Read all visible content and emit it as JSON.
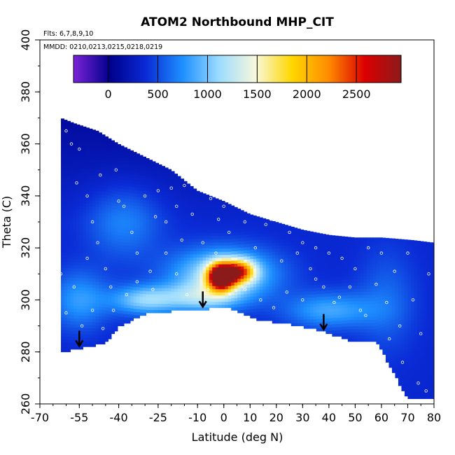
{
  "chart_data": {
    "type": "heatmap",
    "title": "ATOM2 Northbound MHP_CIT",
    "flights_note": "Flts: 6,7,8,9,10",
    "dates_note": "MMDD: 0210,0213,0215,0218,0219",
    "xlabel": "Latitude (deg N)",
    "ylabel": "Theta (C)",
    "xlim": [
      -70,
      80
    ],
    "ylim": [
      260,
      400
    ],
    "x_ticks": [
      -70,
      -55,
      -40,
      -25,
      -10,
      0,
      10,
      20,
      30,
      40,
      50,
      60,
      70,
      80
    ],
    "x_tick_labels": [
      "-70",
      "-55",
      "-40",
      "-25",
      "-10",
      "0",
      "10",
      "20",
      "30",
      "40",
      "50",
      "60",
      "70",
      "80"
    ],
    "y_ticks": [
      260,
      280,
      300,
      320,
      340,
      360,
      380,
      400
    ],
    "y_tick_labels": [
      "260",
      "280",
      "300",
      "320",
      "340",
      "360",
      "380",
      "400"
    ],
    "colorbar": {
      "range": [
        -350,
        2950
      ],
      "ticks": [
        0,
        500,
        1000,
        1500,
        2000,
        2500
      ],
      "tick_labels": [
        "0",
        "500",
        "1000",
        "1500",
        "2000",
        "2500"
      ],
      "colors": [
        "#7b22d9",
        "#00008b",
        "#0a2bd6",
        "#1e90ff",
        "#9cdcff",
        "#f8f8dc",
        "#ffd700",
        "#ff8c00",
        "#dc0000",
        "#8b1a1a"
      ]
    },
    "domain": {
      "top": [
        [
          -62,
          370
        ],
        [
          -57,
          368
        ],
        [
          -48,
          365
        ],
        [
          -40,
          360
        ],
        [
          -30,
          355
        ],
        [
          -20,
          350
        ],
        [
          -10,
          342
        ],
        [
          0,
          338
        ],
        [
          10,
          333
        ],
        [
          20,
          330
        ],
        [
          30,
          327
        ],
        [
          40,
          325
        ],
        [
          50,
          324
        ],
        [
          60,
          324
        ],
        [
          72,
          323
        ],
        [
          80,
          322
        ]
      ],
      "bottom": [
        [
          -62,
          280
        ],
        [
          -58,
          281
        ],
        [
          -45,
          284
        ],
        [
          -40,
          290
        ],
        [
          -30,
          295
        ],
        [
          -20,
          296
        ],
        [
          -5,
          297
        ],
        [
          0,
          298
        ],
        [
          5,
          296
        ],
        [
          12,
          293
        ],
        [
          25,
          291
        ],
        [
          35,
          289
        ],
        [
          45,
          286
        ],
        [
          50,
          284
        ],
        [
          58,
          285
        ],
        [
          70,
          262
        ],
        [
          80,
          262
        ]
      ]
    },
    "field_base": 350,
    "field_features": [
      {
        "name": "core-max",
        "x": -1,
        "y": 309,
        "value": 2600,
        "sx": 3.5,
        "sy": 3.5
      },
      {
        "name": "core-shoulder",
        "x": 6,
        "y": 311,
        "value": 1500,
        "sx": 4,
        "sy": 3
      },
      {
        "name": "high-theta-halo",
        "x": 0,
        "y": 310,
        "value": 900,
        "sx": 14,
        "sy": 7
      },
      {
        "name": "low-theta-band-south",
        "x": -30,
        "y": 300,
        "value": 700,
        "sx": 9,
        "sy": 4
      },
      {
        "name": "low-theta-band-mid",
        "x": -8,
        "y": 301,
        "value": 600,
        "sx": 10,
        "sy": 4
      },
      {
        "name": "low-theta-band-north",
        "x": 40,
        "y": 296,
        "value": 500,
        "sx": 12,
        "sy": 5
      },
      {
        "name": "upper-filament",
        "x": -38,
        "y": 330,
        "value": 350,
        "sx": 10,
        "sy": 10
      },
      {
        "name": "southern-low-level",
        "x": -55,
        "y": 300,
        "value": 450,
        "sx": 8,
        "sy": 8
      },
      {
        "name": "high-lat-low-level",
        "x": 62,
        "y": 300,
        "value": 250,
        "sx": 8,
        "sy": 14
      }
    ],
    "low_arrows_lat": [
      -55,
      -8,
      38
    ],
    "sample_points": [
      [
        -60,
        365
      ],
      [
        -58,
        360
      ],
      [
        -55,
        358
      ],
      [
        -52,
        340
      ],
      [
        -50,
        330
      ],
      [
        -48,
        322
      ],
      [
        -45,
        312
      ],
      [
        -43,
        305
      ],
      [
        -40,
        338
      ],
      [
        -38,
        336
      ],
      [
        -35,
        326
      ],
      [
        -33,
        318
      ],
      [
        -30,
        340
      ],
      [
        -28,
        311
      ],
      [
        -25,
        342
      ],
      [
        -22,
        330
      ],
      [
        -20,
        343
      ],
      [
        -18,
        336
      ],
      [
        -15,
        344
      ],
      [
        -12,
        333
      ],
      [
        -10,
        345
      ],
      [
        -8,
        322
      ],
      [
        -5,
        339
      ],
      [
        -3,
        318
      ],
      [
        0,
        336
      ],
      [
        2,
        326
      ],
      [
        5,
        340
      ],
      [
        8,
        330
      ],
      [
        10,
        341
      ],
      [
        12,
        320
      ],
      [
        15,
        342
      ],
      [
        18,
        331
      ],
      [
        20,
        340
      ],
      [
        22,
        315
      ],
      [
        25,
        326
      ],
      [
        28,
        318
      ],
      [
        30,
        322
      ],
      [
        33,
        312
      ],
      [
        35,
        320
      ],
      [
        38,
        305
      ],
      [
        40,
        318
      ],
      [
        42,
        299
      ],
      [
        45,
        316
      ],
      [
        48,
        305
      ],
      [
        50,
        312
      ],
      [
        52,
        296
      ],
      [
        55,
        320
      ],
      [
        58,
        306
      ],
      [
        60,
        318
      ],
      [
        62,
        299
      ],
      [
        65,
        311
      ],
      [
        67,
        290
      ],
      [
        70,
        318
      ],
      [
        72,
        300
      ],
      [
        75,
        287
      ],
      [
        78,
        310
      ],
      [
        -62,
        310
      ],
      [
        -60,
        295
      ],
      [
        -57,
        305
      ],
      [
        -54,
        290
      ],
      [
        -50,
        296
      ],
      [
        -46,
        289
      ],
      [
        -42,
        296
      ],
      [
        -37,
        302
      ],
      [
        -33,
        307
      ],
      [
        -27,
        304
      ],
      [
        -22,
        318
      ],
      [
        -18,
        310
      ],
      [
        -14,
        302
      ],
      [
        -6,
        304
      ],
      [
        8,
        304
      ],
      [
        14,
        300
      ],
      [
        19,
        297
      ],
      [
        24,
        303
      ],
      [
        30,
        300
      ],
      [
        35,
        308
      ],
      [
        44,
        301
      ],
      [
        54,
        294
      ],
      [
        63,
        285
      ],
      [
        68,
        276
      ],
      [
        74,
        268
      ],
      [
        77,
        265
      ],
      [
        -56,
        345
      ],
      [
        -52,
        316
      ],
      [
        -47,
        348
      ],
      [
        -41,
        350
      ],
      [
        -26,
        332
      ],
      [
        -16,
        323
      ],
      [
        -2,
        331
      ],
      [
        16,
        329
      ]
    ]
  }
}
